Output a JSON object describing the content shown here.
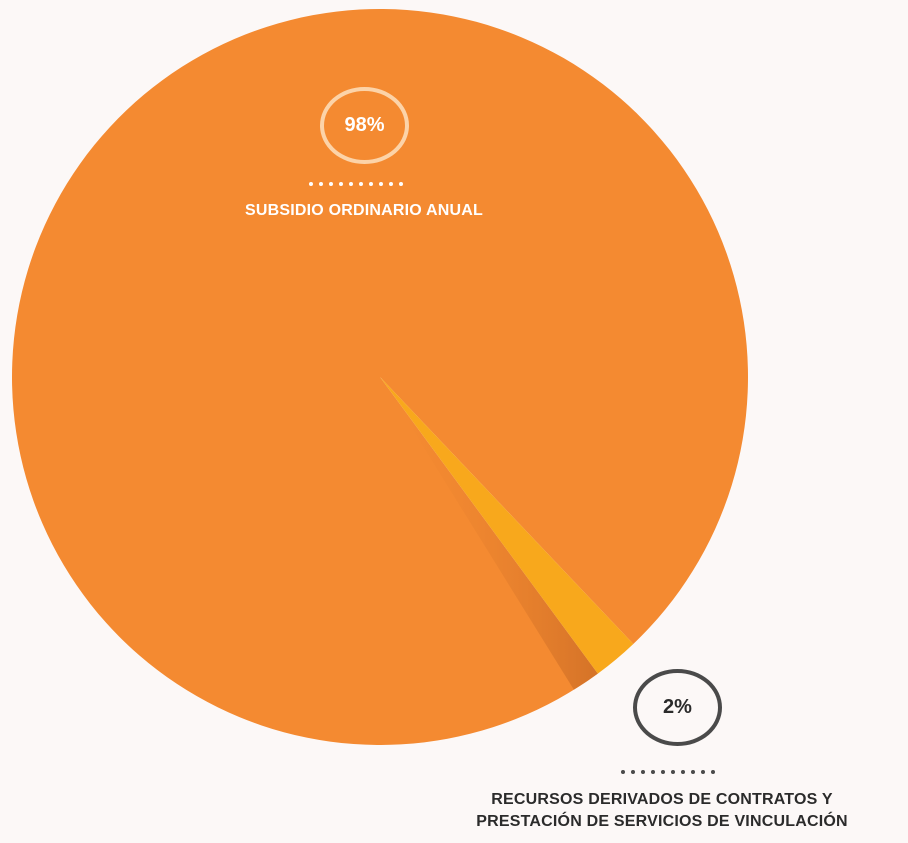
{
  "chart_data": {
    "type": "pie",
    "slices": [
      {
        "label": "SUBSIDIO ORDINARIO ANUAL",
        "value": 98,
        "value_label": "98%",
        "color": "#f48a31"
      },
      {
        "label_lines": [
          "RECURSOS DERIVADOS DE CONTRATOS Y",
          "PRESTACIÓN DE SERVICIOS DE VINCULACIÓN"
        ],
        "value": 2,
        "value_label": "2%",
        "color": "#f8a81c"
      }
    ]
  }
}
